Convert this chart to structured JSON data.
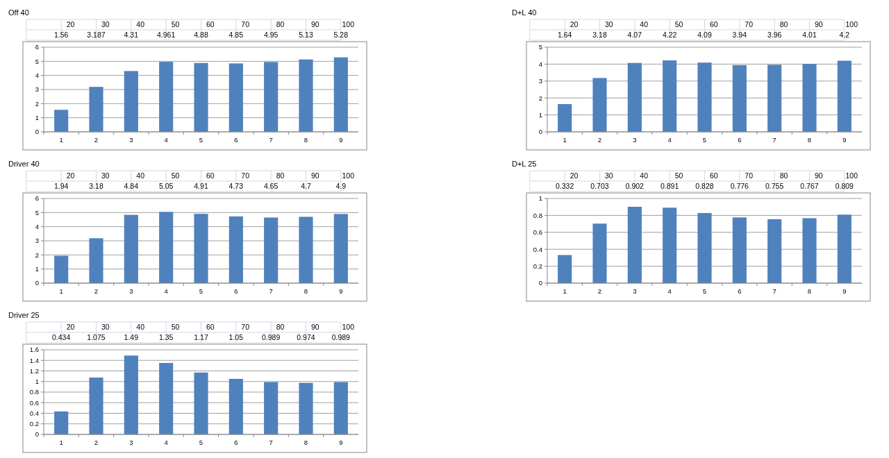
{
  "chart_data": [
    {
      "type": "bar",
      "title": "Off 40",
      "annotations": [
        "20",
        "30",
        "40",
        "50",
        "60",
        "70",
        "80",
        "90",
        "100"
      ],
      "categories": [
        "1",
        "2",
        "3",
        "4",
        "5",
        "6",
        "7",
        "8",
        "9"
      ],
      "values": [
        1.56,
        3.187,
        4.31,
        4.961,
        4.88,
        4.85,
        4.95,
        5.13,
        5.28
      ],
      "color": "#4f81bd",
      "ylim": [
        0,
        6
      ],
      "yticks": [
        0,
        1,
        2,
        3,
        4,
        5,
        6
      ],
      "grid": "y",
      "data_labels": true
    },
    {
      "type": "bar",
      "title": "D+L 40",
      "annotations": [
        "20",
        "30",
        "40",
        "50",
        "60",
        "70",
        "80",
        "90",
        "100"
      ],
      "categories": [
        "1",
        "2",
        "3",
        "4",
        "5",
        "6",
        "7",
        "8",
        "9"
      ],
      "values": [
        1.64,
        3.18,
        4.07,
        4.22,
        4.09,
        3.94,
        3.96,
        4.01,
        4.2
      ],
      "color": "#4f81bd",
      "ylim": [
        0,
        5
      ],
      "yticks": [
        0,
        1,
        2,
        3,
        4,
        5
      ],
      "grid": "y",
      "data_labels": true
    },
    {
      "type": "bar",
      "title": "Driver 40",
      "annotations": [
        "20",
        "30",
        "40",
        "50",
        "60",
        "70",
        "80",
        "90",
        "100"
      ],
      "categories": [
        "1",
        "2",
        "3",
        "4",
        "5",
        "6",
        "7",
        "8",
        "9"
      ],
      "values": [
        1.94,
        3.18,
        4.84,
        5.05,
        4.91,
        4.73,
        4.65,
        4.7,
        4.9
      ],
      "color": "#4f81bd",
      "ylim": [
        0,
        6
      ],
      "yticks": [
        0,
        1,
        2,
        3,
        4,
        5,
        6
      ],
      "grid": "y",
      "data_labels": true
    },
    {
      "type": "bar",
      "title": "D+L 25",
      "annotations": [
        "20",
        "30",
        "40",
        "50",
        "60",
        "70",
        "80",
        "90",
        "100"
      ],
      "categories": [
        "1",
        "2",
        "3",
        "4",
        "5",
        "6",
        "7",
        "8",
        "9"
      ],
      "values": [
        0.332,
        0.703,
        0.902,
        0.891,
        0.828,
        0.776,
        0.755,
        0.767,
        0.809
      ],
      "color": "#4f81bd",
      "ylim": [
        0,
        1
      ],
      "yticks": [
        0,
        0.2,
        0.4,
        0.6,
        0.8,
        1
      ],
      "grid": "y",
      "data_labels": true
    },
    {
      "type": "bar",
      "title": "Driver 25",
      "annotations": [
        "20",
        "30",
        "40",
        "50",
        "60",
        "70",
        "80",
        "90",
        "100"
      ],
      "categories": [
        "1",
        "2",
        "3",
        "4",
        "5",
        "6",
        "7",
        "8",
        "9"
      ],
      "values": [
        0.434,
        1.075,
        1.49,
        1.35,
        1.17,
        1.05,
        0.989,
        0.974,
        0.989
      ],
      "color": "#4f81bd",
      "ylim": [
        0,
        1.6
      ],
      "yticks": [
        0,
        0.2,
        0.4,
        0.6,
        0.8,
        1,
        1.2,
        1.4,
        1.6
      ],
      "grid": "y",
      "data_labels": true
    }
  ]
}
